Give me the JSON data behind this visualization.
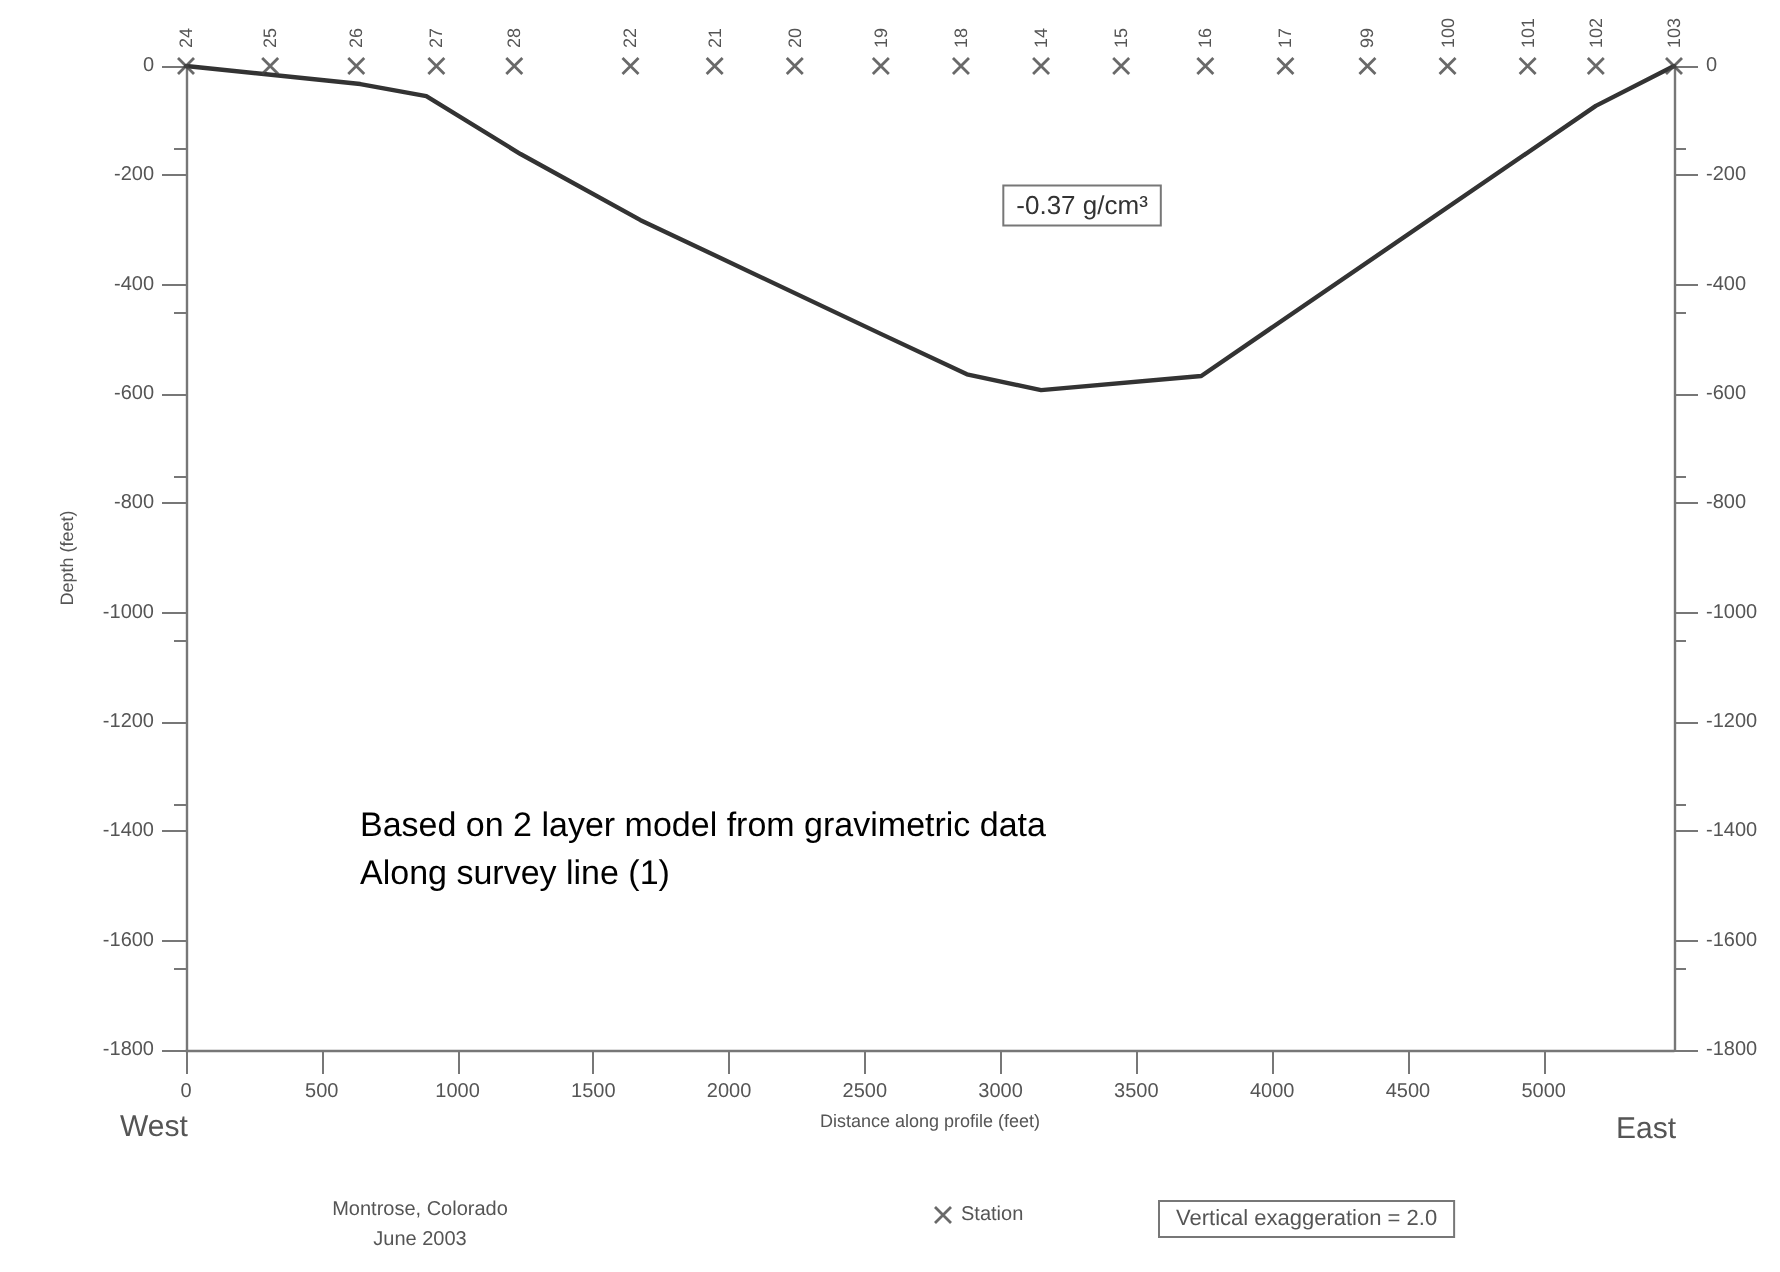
{
  "chart_data": {
    "type": "line",
    "xlabel": "Distance along profile (feet)",
    "ylabel": "Depth (feet)",
    "xlim": [
      0,
      5480
    ],
    "xticks": [
      0,
      500,
      1000,
      1500,
      2000,
      2500,
      3000,
      3500,
      4000,
      4500,
      5000
    ],
    "ylim": [
      -1800,
      0
    ],
    "yticks": [
      -1800,
      -1600,
      -1400,
      -1200,
      -1000,
      -800,
      -600,
      -400,
      -200,
      0
    ],
    "y2lim": [
      -1800,
      0
    ],
    "y2ticks": [
      -1800,
      -1600,
      -1400,
      -1200,
      -1000,
      -800,
      -600,
      -400,
      -200,
      0
    ],
    "grid": false,
    "legend": "bottom",
    "series": [
      {
        "color": "#333333",
        "marker": "none",
        "line_style": "solid",
        "x": [
          0,
          642,
          885,
          1232,
          1674,
          2559,
          2876,
          3149,
          3739,
          5192,
          5480
        ],
        "values": [
          0,
          -33,
          -55,
          -161,
          -282,
          -490,
          -564,
          -593,
          -567,
          -73,
          0
        ]
      },
      {
        "type": "scatter",
        "name": "Station",
        "color": "#444444",
        "marker": "cross",
        "x": [
          0,
          310,
          627,
          922,
          1209,
          1637,
          1947,
          2242,
          2559,
          2854,
          3149,
          3444,
          3754,
          4049,
          4351,
          4646,
          4941,
          5192,
          5480
        ],
        "values": [
          0,
          0,
          0,
          0,
          0,
          0,
          0,
          0,
          0,
          0,
          0,
          0,
          0,
          0,
          0,
          0,
          0,
          0,
          0
        ]
      }
    ],
    "annotations": [
      "-0.37 g/cm³",
      "Based on 2 layer model from gravimetric data",
      "Along survey line (1)",
      "West",
      "East",
      "Montrose, Colorado",
      "June 2003",
      "Vertical exaggeration = 2.0",
      {
        "text": "24",
        "x": 0,
        "y": 0
      },
      {
        "text": "25",
        "x": 310,
        "y": 0
      },
      {
        "text": "26",
        "x": 627,
        "y": 0
      },
      {
        "text": "27",
        "x": 922,
        "y": 0
      },
      {
        "text": "28",
        "x": 1209,
        "y": 0
      },
      {
        "text": "22",
        "x": 1637,
        "y": 0
      },
      {
        "text": "21",
        "x": 1947,
        "y": 0
      },
      {
        "text": "20",
        "x": 2242,
        "y": 0
      },
      {
        "text": "19",
        "x": 2559,
        "y": 0
      },
      {
        "text": "18",
        "x": 2854,
        "y": 0
      },
      {
        "text": "14",
        "x": 3149,
        "y": 0
      },
      {
        "text": "15",
        "x": 3444,
        "y": 0
      },
      {
        "text": "16",
        "x": 3754,
        "y": 0
      },
      {
        "text": "17",
        "x": 4049,
        "y": 0
      },
      {
        "text": "99",
        "x": 4351,
        "y": 0
      },
      {
        "text": "100",
        "x": 4646,
        "y": 0
      },
      {
        "text": "101",
        "x": 4941,
        "y": 0
      },
      {
        "text": "102",
        "x": 5192,
        "y": 0
      },
      {
        "text": "103",
        "x": 5480,
        "y": 0
      }
    ]
  }
}
